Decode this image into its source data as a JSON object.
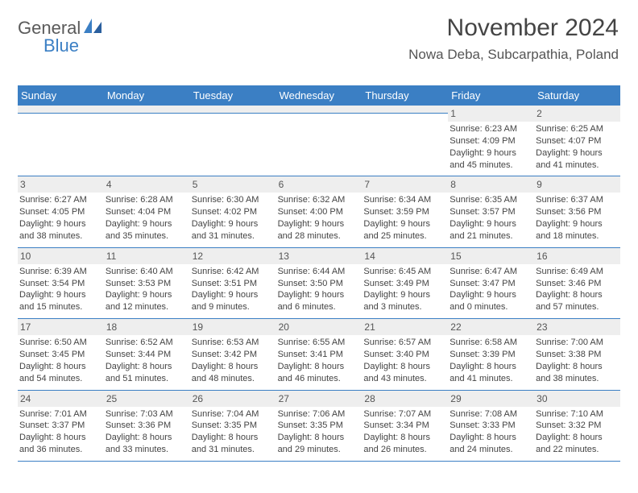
{
  "logo": {
    "text1": "General",
    "text2": "Blue"
  },
  "header": {
    "month_title": "November 2024",
    "location": "Nowa Deba, Subcarpathia, Poland"
  },
  "day_names": [
    "Sunday",
    "Monday",
    "Tuesday",
    "Wednesday",
    "Thursday",
    "Friday",
    "Saturday"
  ],
  "colors": {
    "header_bg": "#3b7fc4",
    "header_fg": "#ffffff",
    "daynum_bg": "#eeeeee",
    "border": "#3b7fc4",
    "logo_gray": "#5a5a5a",
    "logo_blue": "#3b7fc4"
  },
  "weeks": [
    [
      {
        "empty": true
      },
      {
        "empty": true
      },
      {
        "empty": true
      },
      {
        "empty": true
      },
      {
        "empty": true
      },
      {
        "day": "1",
        "sunrise": "Sunrise: 6:23 AM",
        "sunset": "Sunset: 4:09 PM",
        "daylight1": "Daylight: 9 hours",
        "daylight2": "and 45 minutes."
      },
      {
        "day": "2",
        "sunrise": "Sunrise: 6:25 AM",
        "sunset": "Sunset: 4:07 PM",
        "daylight1": "Daylight: 9 hours",
        "daylight2": "and 41 minutes."
      }
    ],
    [
      {
        "day": "3",
        "sunrise": "Sunrise: 6:27 AM",
        "sunset": "Sunset: 4:05 PM",
        "daylight1": "Daylight: 9 hours",
        "daylight2": "and 38 minutes."
      },
      {
        "day": "4",
        "sunrise": "Sunrise: 6:28 AM",
        "sunset": "Sunset: 4:04 PM",
        "daylight1": "Daylight: 9 hours",
        "daylight2": "and 35 minutes."
      },
      {
        "day": "5",
        "sunrise": "Sunrise: 6:30 AM",
        "sunset": "Sunset: 4:02 PM",
        "daylight1": "Daylight: 9 hours",
        "daylight2": "and 31 minutes."
      },
      {
        "day": "6",
        "sunrise": "Sunrise: 6:32 AM",
        "sunset": "Sunset: 4:00 PM",
        "daylight1": "Daylight: 9 hours",
        "daylight2": "and 28 minutes."
      },
      {
        "day": "7",
        "sunrise": "Sunrise: 6:34 AM",
        "sunset": "Sunset: 3:59 PM",
        "daylight1": "Daylight: 9 hours",
        "daylight2": "and 25 minutes."
      },
      {
        "day": "8",
        "sunrise": "Sunrise: 6:35 AM",
        "sunset": "Sunset: 3:57 PM",
        "daylight1": "Daylight: 9 hours",
        "daylight2": "and 21 minutes."
      },
      {
        "day": "9",
        "sunrise": "Sunrise: 6:37 AM",
        "sunset": "Sunset: 3:56 PM",
        "daylight1": "Daylight: 9 hours",
        "daylight2": "and 18 minutes."
      }
    ],
    [
      {
        "day": "10",
        "sunrise": "Sunrise: 6:39 AM",
        "sunset": "Sunset: 3:54 PM",
        "daylight1": "Daylight: 9 hours",
        "daylight2": "and 15 minutes."
      },
      {
        "day": "11",
        "sunrise": "Sunrise: 6:40 AM",
        "sunset": "Sunset: 3:53 PM",
        "daylight1": "Daylight: 9 hours",
        "daylight2": "and 12 minutes."
      },
      {
        "day": "12",
        "sunrise": "Sunrise: 6:42 AM",
        "sunset": "Sunset: 3:51 PM",
        "daylight1": "Daylight: 9 hours",
        "daylight2": "and 9 minutes."
      },
      {
        "day": "13",
        "sunrise": "Sunrise: 6:44 AM",
        "sunset": "Sunset: 3:50 PM",
        "daylight1": "Daylight: 9 hours",
        "daylight2": "and 6 minutes."
      },
      {
        "day": "14",
        "sunrise": "Sunrise: 6:45 AM",
        "sunset": "Sunset: 3:49 PM",
        "daylight1": "Daylight: 9 hours",
        "daylight2": "and 3 minutes."
      },
      {
        "day": "15",
        "sunrise": "Sunrise: 6:47 AM",
        "sunset": "Sunset: 3:47 PM",
        "daylight1": "Daylight: 9 hours",
        "daylight2": "and 0 minutes."
      },
      {
        "day": "16",
        "sunrise": "Sunrise: 6:49 AM",
        "sunset": "Sunset: 3:46 PM",
        "daylight1": "Daylight: 8 hours",
        "daylight2": "and 57 minutes."
      }
    ],
    [
      {
        "day": "17",
        "sunrise": "Sunrise: 6:50 AM",
        "sunset": "Sunset: 3:45 PM",
        "daylight1": "Daylight: 8 hours",
        "daylight2": "and 54 minutes."
      },
      {
        "day": "18",
        "sunrise": "Sunrise: 6:52 AM",
        "sunset": "Sunset: 3:44 PM",
        "daylight1": "Daylight: 8 hours",
        "daylight2": "and 51 minutes."
      },
      {
        "day": "19",
        "sunrise": "Sunrise: 6:53 AM",
        "sunset": "Sunset: 3:42 PM",
        "daylight1": "Daylight: 8 hours",
        "daylight2": "and 48 minutes."
      },
      {
        "day": "20",
        "sunrise": "Sunrise: 6:55 AM",
        "sunset": "Sunset: 3:41 PM",
        "daylight1": "Daylight: 8 hours",
        "daylight2": "and 46 minutes."
      },
      {
        "day": "21",
        "sunrise": "Sunrise: 6:57 AM",
        "sunset": "Sunset: 3:40 PM",
        "daylight1": "Daylight: 8 hours",
        "daylight2": "and 43 minutes."
      },
      {
        "day": "22",
        "sunrise": "Sunrise: 6:58 AM",
        "sunset": "Sunset: 3:39 PM",
        "daylight1": "Daylight: 8 hours",
        "daylight2": "and 41 minutes."
      },
      {
        "day": "23",
        "sunrise": "Sunrise: 7:00 AM",
        "sunset": "Sunset: 3:38 PM",
        "daylight1": "Daylight: 8 hours",
        "daylight2": "and 38 minutes."
      }
    ],
    [
      {
        "day": "24",
        "sunrise": "Sunrise: 7:01 AM",
        "sunset": "Sunset: 3:37 PM",
        "daylight1": "Daylight: 8 hours",
        "daylight2": "and 36 minutes."
      },
      {
        "day": "25",
        "sunrise": "Sunrise: 7:03 AM",
        "sunset": "Sunset: 3:36 PM",
        "daylight1": "Daylight: 8 hours",
        "daylight2": "and 33 minutes."
      },
      {
        "day": "26",
        "sunrise": "Sunrise: 7:04 AM",
        "sunset": "Sunset: 3:35 PM",
        "daylight1": "Daylight: 8 hours",
        "daylight2": "and 31 minutes."
      },
      {
        "day": "27",
        "sunrise": "Sunrise: 7:06 AM",
        "sunset": "Sunset: 3:35 PM",
        "daylight1": "Daylight: 8 hours",
        "daylight2": "and 29 minutes."
      },
      {
        "day": "28",
        "sunrise": "Sunrise: 7:07 AM",
        "sunset": "Sunset: 3:34 PM",
        "daylight1": "Daylight: 8 hours",
        "daylight2": "and 26 minutes."
      },
      {
        "day": "29",
        "sunrise": "Sunrise: 7:08 AM",
        "sunset": "Sunset: 3:33 PM",
        "daylight1": "Daylight: 8 hours",
        "daylight2": "and 24 minutes."
      },
      {
        "day": "30",
        "sunrise": "Sunrise: 7:10 AM",
        "sunset": "Sunset: 3:32 PM",
        "daylight1": "Daylight: 8 hours",
        "daylight2": "and 22 minutes."
      }
    ]
  ]
}
